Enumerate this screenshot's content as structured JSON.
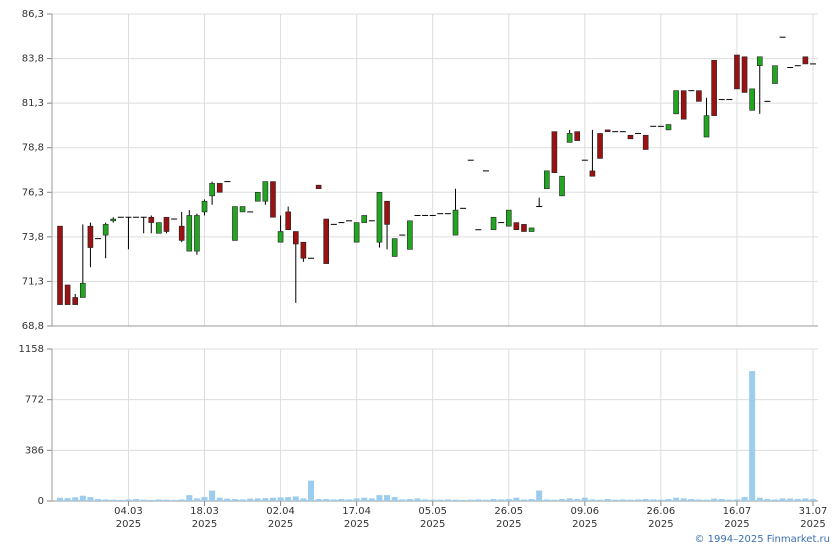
{
  "chart_data": {
    "type": "candlestick",
    "categories": [
      null,
      null,
      null,
      null,
      null,
      null,
      null,
      null,
      null,
      "04.03\n2025",
      null,
      null,
      null,
      null,
      null,
      null,
      null,
      null,
      null,
      "18.03\n2025",
      null,
      null,
      null,
      null,
      null,
      null,
      null,
      null,
      null,
      "02.04\n2025",
      null,
      null,
      null,
      null,
      null,
      null,
      null,
      null,
      null,
      "17.04\n2025",
      null,
      null,
      null,
      null,
      null,
      null,
      null,
      null,
      null,
      "05.05\n2025",
      null,
      null,
      null,
      null,
      null,
      null,
      null,
      null,
      null,
      "26.05\n2025",
      null,
      null,
      null,
      null,
      null,
      null,
      null,
      null,
      null,
      "09.06\n2025",
      null,
      null,
      null,
      null,
      null,
      null,
      null,
      null,
      null,
      "26.06\n2025",
      null,
      null,
      null,
      null,
      null,
      null,
      null,
      null,
      null,
      "16.07\n2025",
      null,
      null,
      null,
      null,
      null,
      null,
      null,
      null,
      null,
      "31.07\n2025"
    ],
    "open": [
      74.4,
      71.1,
      70.4,
      70.4,
      74.4,
      73.7,
      73.9,
      74.7,
      74.9,
      74.9,
      74.9,
      74.9,
      74.9,
      74.0,
      74.9,
      74.8,
      74.4,
      73.0,
      73.0,
      75.2,
      76.1,
      76.8,
      76.9,
      73.6,
      75.2,
      75.2,
      75.8,
      75.8,
      76.9,
      73.5,
      75.2,
      74.1,
      73.5,
      72.6,
      76.7,
      74.8,
      74.5,
      74.6,
      74.7,
      73.5,
      74.6,
      74.7,
      73.5,
      75.8,
      72.7,
      73.9,
      73.1,
      75.0,
      75.0,
      75.0,
      75.1,
      75.1,
      73.9,
      75.4,
      78.1,
      74.2,
      77.5,
      74.2,
      74.6,
      74.4,
      74.6,
      74.5,
      74.1,
      75.5,
      76.5,
      79.7,
      76.1,
      79.1,
      79.7,
      78.1,
      77.5,
      79.6,
      79.8,
      79.7,
      79.7,
      79.5,
      79.6,
      79.5,
      80.0,
      80.0,
      79.8,
      80.7,
      82.0,
      82.0,
      82.0,
      79.4,
      83.7,
      81.5,
      81.5,
      84.0,
      83.9,
      80.9,
      83.4,
      81.4,
      82.4,
      85.0,
      83.3,
      83.4,
      83.9,
      83.5
    ],
    "high": [
      74.4,
      71.1,
      70.6,
      74.5,
      74.6,
      73.7,
      74.6,
      74.9,
      74.9,
      74.9,
      74.9,
      74.9,
      75.0,
      74.6,
      74.9,
      74.8,
      75.2,
      75.3,
      75.1,
      75.9,
      76.9,
      76.8,
      76.9,
      75.5,
      75.5,
      75.2,
      76.3,
      76.9,
      76.9,
      75.0,
      75.5,
      74.1,
      73.5,
      72.6,
      76.7,
      74.8,
      74.5,
      74.6,
      74.7,
      74.6,
      75.0,
      74.7,
      76.3,
      75.8,
      73.7,
      73.9,
      74.7,
      75.0,
      75.0,
      75.0,
      75.1,
      75.1,
      76.5,
      75.4,
      78.1,
      74.2,
      77.5,
      74.9,
      74.6,
      75.3,
      74.6,
      74.5,
      74.3,
      76.0,
      77.5,
      79.7,
      77.2,
      79.8,
      79.7,
      78.1,
      79.8,
      79.6,
      79.8,
      79.7,
      79.7,
      79.5,
      79.6,
      79.5,
      80.0,
      80.0,
      80.1,
      82.0,
      82.0,
      82.0,
      82.0,
      81.6,
      83.7,
      81.5,
      81.5,
      84.0,
      83.9,
      82.1,
      83.9,
      81.4,
      83.4,
      85.0,
      83.3,
      83.4,
      83.9,
      83.5
    ],
    "low": [
      70.0,
      70.0,
      70.0,
      70.4,
      72.1,
      73.7,
      72.6,
      74.6,
      74.9,
      73.1,
      74.9,
      74.0,
      74.0,
      74.0,
      74.0,
      74.8,
      73.5,
      73.0,
      72.8,
      75.0,
      75.6,
      76.3,
      76.9,
      73.6,
      75.2,
      75.2,
      75.8,
      75.6,
      74.9,
      73.5,
      74.2,
      70.1,
      72.4,
      72.6,
      76.5,
      72.3,
      74.5,
      74.6,
      74.7,
      73.5,
      74.6,
      74.7,
      73.2,
      73.1,
      72.7,
      73.9,
      73.1,
      75.0,
      75.0,
      75.0,
      75.1,
      75.1,
      73.9,
      75.4,
      78.1,
      74.2,
      77.5,
      74.2,
      74.6,
      74.4,
      74.2,
      74.1,
      74.1,
      75.5,
      76.5,
      77.4,
      76.1,
      79.1,
      79.2,
      78.1,
      77.2,
      78.2,
      79.7,
      79.7,
      79.7,
      79.3,
      79.6,
      78.7,
      80.0,
      80.0,
      79.8,
      80.7,
      80.4,
      82.0,
      81.4,
      79.4,
      80.6,
      81.5,
      81.5,
      82.1,
      81.9,
      80.9,
      80.7,
      81.4,
      82.4,
      85.0,
      83.3,
      83.4,
      83.5,
      83.5
    ],
    "close": [
      70.0,
      70.0,
      70.0,
      71.2,
      73.2,
      73.7,
      74.5,
      74.8,
      74.9,
      74.9,
      74.9,
      74.9,
      74.6,
      74.6,
      74.1,
      74.8,
      73.6,
      75.0,
      75.0,
      75.8,
      76.8,
      76.3,
      76.9,
      75.5,
      75.5,
      75.2,
      76.3,
      76.9,
      74.9,
      74.1,
      74.2,
      73.4,
      72.6,
      72.6,
      76.5,
      72.3,
      74.5,
      74.6,
      74.7,
      74.6,
      75.0,
      74.7,
      76.3,
      74.5,
      73.7,
      73.9,
      74.7,
      75.0,
      75.0,
      75.0,
      75.1,
      75.1,
      75.3,
      75.4,
      78.1,
      74.2,
      77.5,
      74.9,
      74.6,
      75.3,
      74.2,
      74.1,
      74.3,
      75.5,
      77.5,
      77.4,
      77.2,
      79.6,
      79.2,
      78.1,
      77.2,
      78.2,
      79.7,
      79.7,
      79.7,
      79.3,
      79.6,
      78.7,
      80.0,
      80.0,
      80.1,
      82.0,
      80.4,
      82.0,
      81.4,
      80.6,
      80.6,
      81.5,
      81.5,
      82.1,
      81.9,
      82.1,
      83.9,
      81.4,
      83.4,
      85.0,
      83.3,
      83.4,
      83.5,
      83.5
    ],
    "up_color": "#22a622",
    "down_color": "#9b1212",
    "ylim": [
      68.8,
      86.3
    ],
    "yticks": [
      {
        "value": 68.8,
        "label": "68,8"
      },
      {
        "value": 71.3,
        "label": "71,3"
      },
      {
        "value": 73.8,
        "label": "73,8"
      },
      {
        "value": 76.3,
        "label": "76,3"
      },
      {
        "value": 78.8,
        "label": "78,8"
      },
      {
        "value": 81.3,
        "label": "81,3"
      },
      {
        "value": 83.8,
        "label": "83,8"
      },
      {
        "value": 86.3,
        "label": "86,3"
      }
    ],
    "grid": true,
    "volume": {
      "values": [
        25,
        22,
        28,
        40,
        30,
        15,
        12,
        10,
        8,
        12,
        15,
        10,
        8,
        12,
        10,
        8,
        12,
        45,
        20,
        30,
        80,
        25,
        18,
        15,
        12,
        18,
        20,
        22,
        25,
        28,
        30,
        35,
        20,
        155,
        15,
        15,
        12,
        15,
        12,
        20,
        25,
        20,
        45,
        45,
        30,
        12,
        15,
        20,
        12,
        10,
        10,
        12,
        10,
        8,
        10,
        12,
        10,
        15,
        12,
        15,
        25,
        12,
        15,
        80,
        12,
        10,
        15,
        20,
        15,
        25,
        12,
        10,
        15,
        10,
        12,
        10,
        12,
        15,
        12,
        10,
        15,
        25,
        20,
        15,
        12,
        10,
        18,
        15,
        10,
        12,
        30,
        990,
        25,
        15,
        12,
        20,
        18,
        15,
        20,
        15
      ],
      "color": "#9ccdee",
      "ylim": [
        0,
        1158
      ],
      "yticks": [
        0,
        386,
        772,
        1158
      ]
    }
  },
  "footer": {
    "copyright": "© 1994–2025 Finmarket.ru"
  }
}
